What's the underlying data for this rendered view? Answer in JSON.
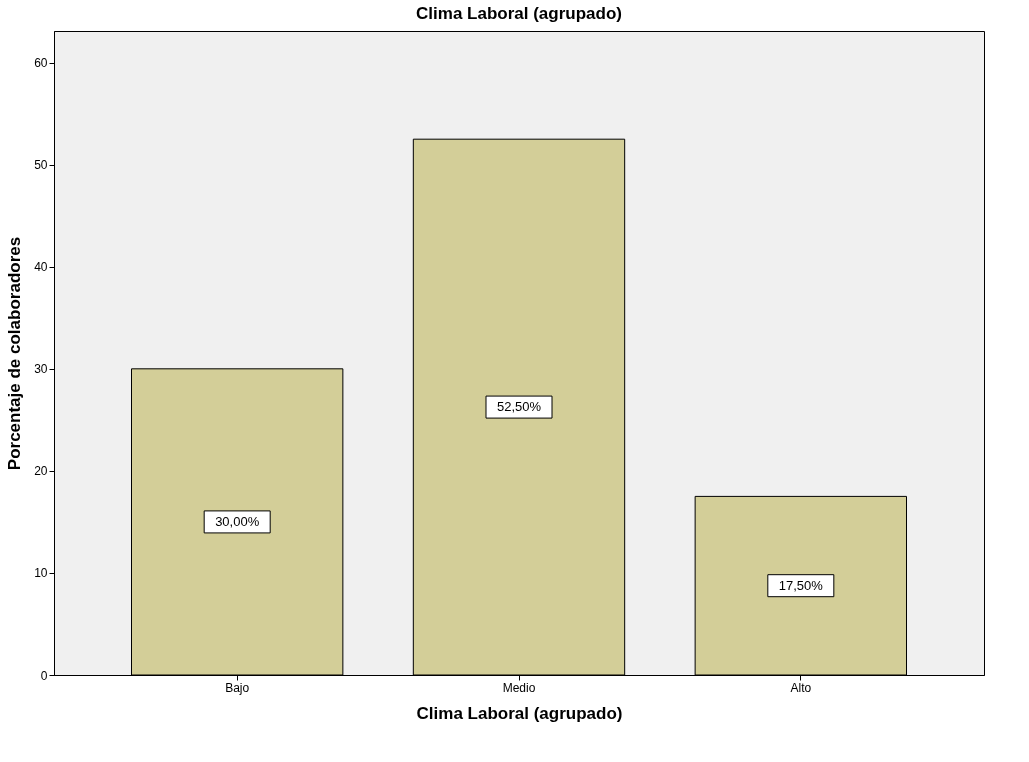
{
  "chart_data": {
    "type": "bar",
    "title": "Clima Laboral (agrupado)",
    "xlabel": "Clima Laboral (agrupado)",
    "ylabel": "Porcentaje de colaboradores",
    "categories": [
      "Bajo",
      "Medio",
      "Alto"
    ],
    "values": [
      30,
      52.5,
      17.5
    ],
    "color": "#d3ce98",
    "value_labels": [
      "30,00%",
      "52,50%",
      "17,50%"
    ],
    "ylim": [
      0,
      63.1
    ],
    "yticks": [
      0,
      10,
      20,
      30,
      40,
      50,
      60
    ],
    "grid": false
  }
}
